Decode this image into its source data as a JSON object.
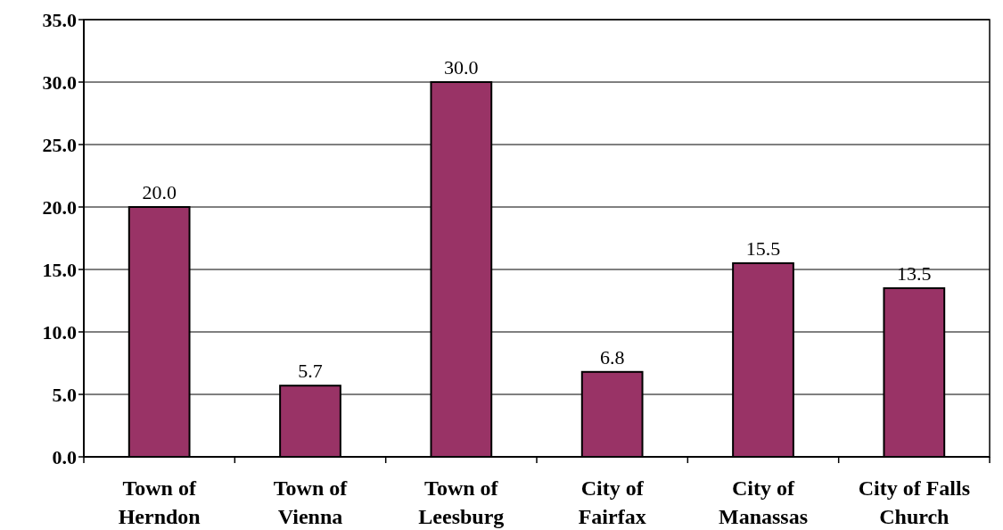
{
  "chart_data": {
    "type": "bar",
    "categories": [
      "Town of Herndon",
      "Town of Vienna",
      "Town of Leesburg",
      "City of Fairfax",
      "City of Manassas",
      "City of Falls Church"
    ],
    "values": [
      20.0,
      5.7,
      30.0,
      6.8,
      15.5,
      13.5
    ],
    "color": "#993366",
    "ylim": [
      0,
      35
    ],
    "yticks": [
      {
        "value": 0,
        "label": "0.0"
      },
      {
        "value": 5,
        "label": "5.0"
      },
      {
        "value": 10,
        "label": "10.0"
      },
      {
        "value": 15,
        "label": "15.0"
      },
      {
        "value": 20,
        "label": "20.0"
      },
      {
        "value": 25,
        "label": "25.0"
      },
      {
        "value": 30,
        "label": "30.0"
      },
      {
        "value": 35,
        "label": "35.0"
      }
    ],
    "value_labels": [
      "20.0",
      "5.7",
      "30.0",
      "6.8",
      "15.5",
      "13.5"
    ],
    "grid": "y"
  }
}
